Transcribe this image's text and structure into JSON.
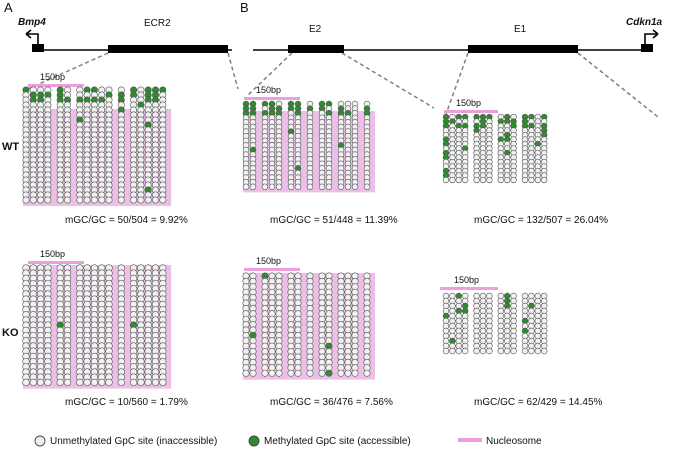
{
  "panels": {
    "a": {
      "label": "A",
      "gene": "Bmp4",
      "region": "ECR2",
      "wt": {
        "scale": "150bp",
        "stat": "mGC/GC = 50/504 = 9.92%"
      },
      "ko": {
        "scale": "150bp",
        "stat": "mGC/GC = 10/560 = 1.79%"
      }
    },
    "b": {
      "label": "B",
      "gene": "Cdkn1a",
      "region1": "E2",
      "region2": "E1",
      "wt_e2": {
        "scale": "150bp",
        "stat": "mGC/GC = 51/448 = 11.39%"
      },
      "wt_e1": {
        "scale": "150bp",
        "stat": "mGC/GC = 132/507 = 26.04%"
      },
      "ko_e2": {
        "scale": "150bp",
        "stat": "mGC/GC = 36/476 = 7.56%"
      },
      "ko_e1": {
        "scale": "150bp",
        "stat": "mGC/GC = 62/429 = 14.45%"
      }
    }
  },
  "rows": {
    "wt": "WT",
    "ko": "KO"
  },
  "legend": {
    "unmethylated": "Unmethylated GpC site (inaccessible)",
    "methylated": "Methylated GpC site (accessible)",
    "nucleosome": "Nucleosome"
  },
  "colors": {
    "methylated": "#2e8b2e",
    "unmethylated": "#f2f2f2",
    "nucleosome": "#e9b4e3",
    "scale_bar": "#ec9fdc",
    "line": "#000000",
    "dashed": "#808080"
  },
  "blocks": [
    {
      "id": "a-wt",
      "seed": 11,
      "cols": [
        4,
        2,
        5,
        1,
        5
      ],
      "rows": 23,
      "meth": 0.09,
      "nuc": "pink-lower",
      "top_green": true
    },
    {
      "id": "a-ko",
      "seed": 23,
      "cols": [
        4,
        2,
        5,
        1,
        5
      ],
      "rows": 23,
      "meth": 0.02,
      "nuc": "pink-all",
      "top_green": false
    },
    {
      "id": "e2-wt",
      "seed": 37,
      "cols": [
        2,
        3,
        2,
        1,
        2,
        3,
        1
      ],
      "rows": 19,
      "meth": 0.11,
      "nuc": "pink-lower",
      "top_green": true
    },
    {
      "id": "e1-wt",
      "seed": 41,
      "cols": [
        4,
        3,
        3,
        4
      ],
      "rows": 15,
      "meth": 0.26,
      "nuc": "none",
      "top_green": true
    },
    {
      "id": "e2-ko",
      "seed": 53,
      "cols": [
        2,
        3,
        2,
        1,
        2,
        3,
        1
      ],
      "rows": 19,
      "meth": 0.07,
      "nuc": "pink-all",
      "top_green": false
    },
    {
      "id": "e1-ko",
      "seed": 67,
      "cols": [
        4,
        3,
        3,
        4
      ],
      "rows": 12,
      "meth": 0.14,
      "nuc": "none",
      "top_green": false
    }
  ]
}
